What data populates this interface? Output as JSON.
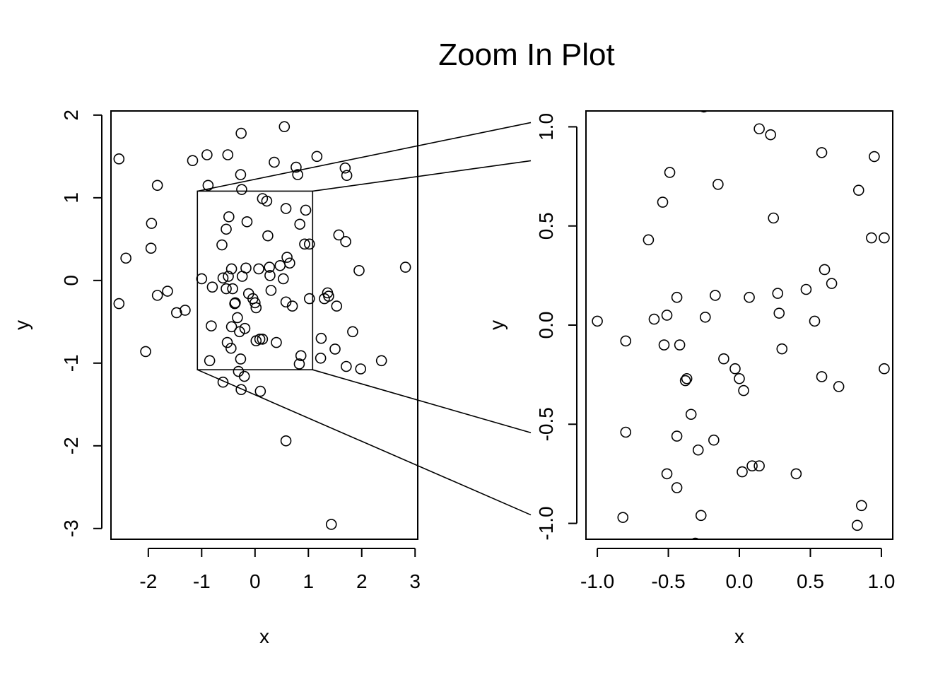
{
  "title": "Zoom In Plot",
  "chart_data": [
    {
      "type": "scatter",
      "xlabel": "x",
      "ylabel": "y",
      "xlim": [
        -2.7,
        3.05
      ],
      "ylim": [
        -3.13,
        2.05
      ],
      "xticks": [
        -2,
        -1,
        0,
        1,
        2,
        3
      ],
      "yticks": [
        -3,
        -2,
        -1,
        0,
        1,
        2
      ],
      "zoom_box": {
        "x": [
          -1.08,
          1.08
        ],
        "y": [
          -1.08,
          1.08
        ]
      },
      "points": [
        [
          -2.55,
          1.47
        ],
        [
          -2.55,
          -0.28
        ],
        [
          -2.42,
          0.27
        ],
        [
          -2.05,
          -0.86
        ],
        [
          -1.95,
          0.39
        ],
        [
          -1.94,
          0.69
        ],
        [
          -1.83,
          1.15
        ],
        [
          -1.83,
          -0.18
        ],
        [
          -1.64,
          -0.13
        ],
        [
          -1.47,
          -0.39
        ],
        [
          -1.31,
          -0.36
        ],
        [
          -1.17,
          1.45
        ],
        [
          -1.0,
          0.02
        ],
        [
          -0.9,
          1.52
        ],
        [
          -0.88,
          1.15
        ],
        [
          -0.85,
          -0.97
        ],
        [
          -0.82,
          -0.55
        ],
        [
          -0.8,
          -0.08
        ],
        [
          -0.62,
          0.43
        ],
        [
          -0.6,
          -1.23
        ],
        [
          -0.6,
          0.03
        ],
        [
          -0.54,
          0.62
        ],
        [
          -0.54,
          -0.1
        ],
        [
          -0.52,
          -0.75
        ],
        [
          -0.51,
          1.52
        ],
        [
          -0.49,
          0.77
        ],
        [
          -0.5,
          0.05
        ],
        [
          -0.45,
          -0.82
        ],
        [
          -0.44,
          0.14
        ],
        [
          -0.44,
          -0.56
        ],
        [
          -0.42,
          -0.1
        ],
        [
          -0.38,
          -0.28
        ],
        [
          -0.37,
          -0.27
        ],
        [
          -0.33,
          -0.45
        ],
        [
          -0.31,
          -1.1
        ],
        [
          -0.29,
          -0.62
        ],
        [
          -0.27,
          1.28
        ],
        [
          -0.27,
          -0.95
        ],
        [
          -0.26,
          -1.32
        ],
        [
          -0.26,
          1.78
        ],
        [
          -0.25,
          1.1
        ],
        [
          -0.24,
          0.05
        ],
        [
          -0.2,
          -1.16
        ],
        [
          -0.19,
          -0.58
        ],
        [
          -0.17,
          0.15
        ],
        [
          -0.15,
          0.71
        ],
        [
          -0.12,
          -0.16
        ],
        [
          -0.04,
          -0.22
        ],
        [
          0.0,
          -0.27
        ],
        [
          0.02,
          -0.73
        ],
        [
          0.02,
          -0.33
        ],
        [
          0.07,
          0.14
        ],
        [
          0.09,
          -0.71
        ],
        [
          0.1,
          -1.34
        ],
        [
          0.14,
          -0.71
        ],
        [
          0.14,
          0.99
        ],
        [
          0.22,
          0.96
        ],
        [
          0.24,
          0.54
        ],
        [
          0.27,
          0.16
        ],
        [
          0.28,
          0.06
        ],
        [
          0.3,
          -0.12
        ],
        [
          0.36,
          1.43
        ],
        [
          0.4,
          -0.75
        ],
        [
          0.47,
          0.18
        ],
        [
          0.53,
          0.02
        ],
        [
          0.55,
          1.86
        ],
        [
          0.58,
          -0.26
        ],
        [
          0.58,
          0.87
        ],
        [
          0.58,
          -1.94
        ],
        [
          0.6,
          0.28
        ],
        [
          0.65,
          0.21
        ],
        [
          0.7,
          -0.31
        ],
        [
          0.77,
          1.37
        ],
        [
          0.8,
          1.28
        ],
        [
          0.83,
          -1.01
        ],
        [
          0.84,
          0.68
        ],
        [
          0.86,
          -0.91
        ],
        [
          0.93,
          0.44
        ],
        [
          0.95,
          0.85
        ],
        [
          1.02,
          0.44
        ],
        [
          1.02,
          -0.22
        ],
        [
          1.16,
          1.5
        ],
        [
          1.23,
          -0.94
        ],
        [
          1.24,
          -0.7
        ],
        [
          1.3,
          -0.22
        ],
        [
          1.36,
          -0.15
        ],
        [
          1.38,
          -0.19
        ],
        [
          1.43,
          -2.95
        ],
        [
          1.5,
          -0.83
        ],
        [
          1.53,
          -0.31
        ],
        [
          1.57,
          0.55
        ],
        [
          1.69,
          1.36
        ],
        [
          1.7,
          0.47
        ],
        [
          1.71,
          -1.04
        ],
        [
          1.72,
          1.27
        ],
        [
          1.83,
          -0.62
        ],
        [
          1.95,
          0.12
        ],
        [
          1.98,
          -1.07
        ],
        [
          2.37,
          -0.97
        ],
        [
          2.82,
          0.16
        ]
      ]
    },
    {
      "type": "scatter",
      "xlabel": "x",
      "ylabel": "y",
      "xlim": [
        -1.08,
        1.08
      ],
      "ylim": [
        -1.08,
        1.08
      ],
      "xticks": [
        "-1.0",
        "-0.5",
        "0.0",
        "0.5",
        "1.0"
      ],
      "yticks": [
        "-1.0",
        "-0.5",
        "0.0",
        "0.5",
        "1.0"
      ],
      "points": [
        [
          -1.0,
          0.02
        ],
        [
          -0.8,
          -0.08
        ],
        [
          -0.8,
          -0.54
        ],
        [
          -0.82,
          -0.97
        ],
        [
          -0.64,
          0.43
        ],
        [
          -0.6,
          0.03
        ],
        [
          -0.54,
          0.62
        ],
        [
          -0.53,
          -0.1
        ],
        [
          -0.51,
          0.05
        ],
        [
          -0.51,
          -0.75
        ],
        [
          -0.49,
          0.77
        ],
        [
          -0.44,
          0.14
        ],
        [
          -0.44,
          -0.56
        ],
        [
          -0.44,
          -0.82
        ],
        [
          -0.42,
          -0.1
        ],
        [
          -0.38,
          -0.28
        ],
        [
          -0.37,
          -0.27
        ],
        [
          -0.34,
          -0.45
        ],
        [
          -0.29,
          -0.63
        ],
        [
          -0.27,
          -0.96
        ],
        [
          -0.24,
          0.04
        ],
        [
          -0.18,
          -0.58
        ],
        [
          -0.17,
          0.15
        ],
        [
          -0.15,
          0.71
        ],
        [
          -0.11,
          -0.17
        ],
        [
          -0.03,
          -0.22
        ],
        [
          0.0,
          -0.27
        ],
        [
          0.02,
          -0.74
        ],
        [
          0.03,
          -0.33
        ],
        [
          0.07,
          0.14
        ],
        [
          0.09,
          -0.71
        ],
        [
          0.14,
          -0.71
        ],
        [
          0.14,
          0.99
        ],
        [
          0.22,
          0.96
        ],
        [
          0.24,
          0.54
        ],
        [
          0.27,
          0.16
        ],
        [
          0.28,
          0.06
        ],
        [
          0.3,
          -0.12
        ],
        [
          0.4,
          -0.75
        ],
        [
          0.47,
          0.18
        ],
        [
          0.53,
          0.02
        ],
        [
          0.58,
          -0.26
        ],
        [
          0.58,
          0.87
        ],
        [
          0.6,
          0.28
        ],
        [
          0.65,
          0.21
        ],
        [
          0.7,
          -0.31
        ],
        [
          0.83,
          -1.01
        ],
        [
          0.84,
          0.68
        ],
        [
          0.86,
          -0.91
        ],
        [
          0.93,
          0.44
        ],
        [
          0.95,
          0.85
        ],
        [
          1.02,
          0.44
        ],
        [
          1.02,
          -0.22
        ],
        [
          -0.25,
          1.1
        ],
        [
          -0.31,
          -1.1
        ]
      ]
    }
  ]
}
